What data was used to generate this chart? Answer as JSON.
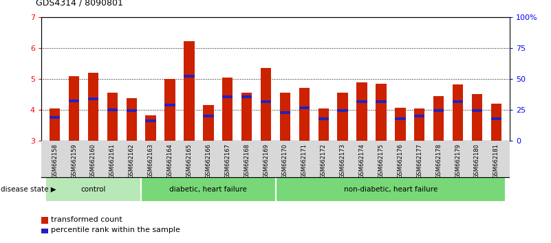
{
  "title": "GDS4314 / 8090801",
  "samples": [
    "GSM662158",
    "GSM662159",
    "GSM662160",
    "GSM662161",
    "GSM662162",
    "GSM662163",
    "GSM662164",
    "GSM662165",
    "GSM662166",
    "GSM662167",
    "GSM662168",
    "GSM662169",
    "GSM662170",
    "GSM662171",
    "GSM662172",
    "GSM662173",
    "GSM662174",
    "GSM662175",
    "GSM662176",
    "GSM662177",
    "GSM662178",
    "GSM662179",
    "GSM662180",
    "GSM662181"
  ],
  "red_values": [
    4.05,
    5.1,
    5.2,
    4.55,
    4.38,
    3.82,
    5.0,
    6.22,
    4.17,
    5.05,
    4.55,
    5.35,
    4.55,
    4.72,
    4.05,
    4.55,
    4.88,
    4.85,
    4.08,
    4.05,
    4.45,
    4.82,
    4.52,
    4.2
  ],
  "blue_values": [
    3.75,
    4.3,
    4.35,
    4.0,
    3.98,
    3.65,
    4.15,
    5.08,
    3.8,
    4.42,
    4.42,
    4.28,
    3.92,
    4.08,
    3.72,
    3.98,
    4.28,
    4.28,
    3.72,
    3.8,
    3.98,
    4.28,
    3.98,
    3.72
  ],
  "groups": [
    {
      "label": "control",
      "start": 0,
      "end": 5,
      "color": "#b8e8b8"
    },
    {
      "label": "diabetic, heart failure",
      "start": 5,
      "end": 12,
      "color": "#78d878"
    },
    {
      "label": "non-diabetic, heart failure",
      "start": 12,
      "end": 24,
      "color": "#78d878"
    }
  ],
  "ylim_left": [
    3.0,
    7.0
  ],
  "ylim_right": [
    0,
    100
  ],
  "yticks_left": [
    3,
    4,
    5,
    6,
    7
  ],
  "yticks_right": [
    0,
    25,
    50,
    75,
    100
  ],
  "ytick_labels_right": [
    "0",
    "25",
    "50",
    "75",
    "100%"
  ],
  "grid_lines": [
    4.0,
    5.0,
    6.0
  ],
  "bar_color": "#cc2200",
  "blue_color": "#2222bb",
  "bar_width": 0.55,
  "legend_red": "transformed count",
  "legend_blue": "percentile rank within the sample",
  "disease_state_label": "disease state"
}
